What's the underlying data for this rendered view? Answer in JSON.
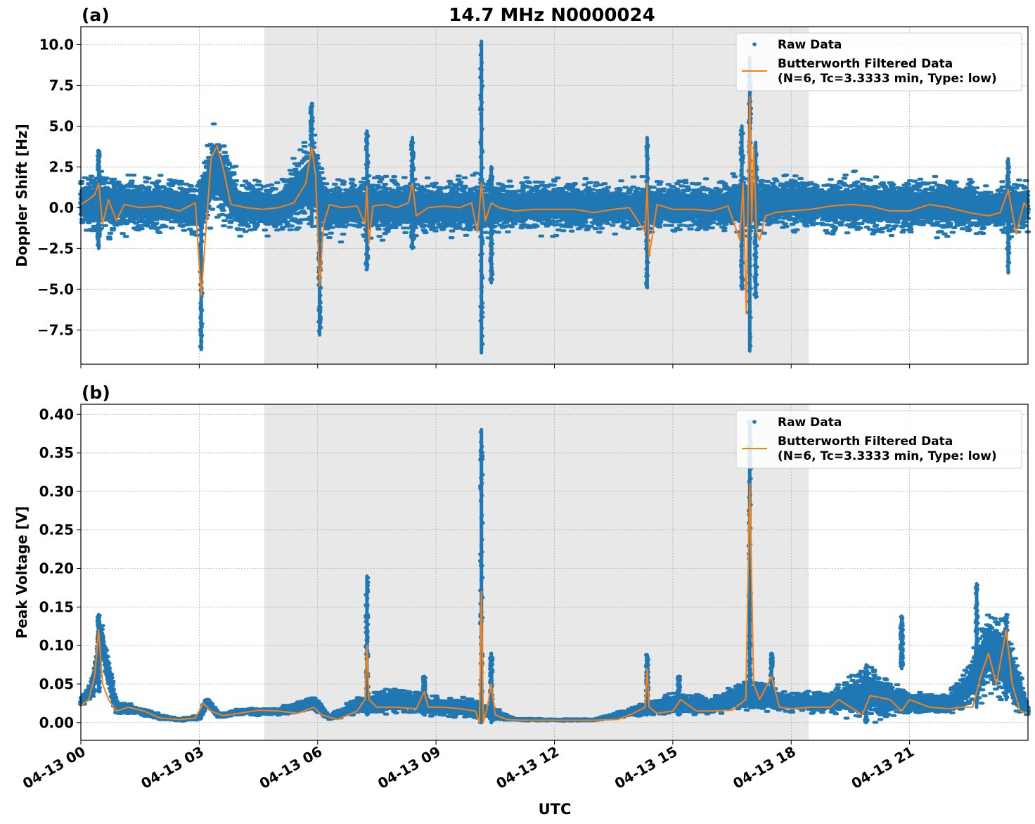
{
  "figure": {
    "title": "14.7 MHz N0000024",
    "xlabel": "UTC"
  },
  "colors": {
    "raw": "#1f77b4",
    "filtered": "#ff7f0e",
    "shade": "#e8e8e8",
    "grid": "#b0b0b0"
  },
  "chart_data": [
    {
      "type": "scatter",
      "panel_label": "(a)",
      "title": "14.7 MHz N0000024",
      "xlabel": "",
      "ylabel": "Doppler Shift [Hz]",
      "xlim": [
        0,
        24
      ],
      "ylim": [
        -9.6,
        11.1
      ],
      "x_unit": "hours UTC on 04-13",
      "yticks": [
        -7.5,
        -5.0,
        -2.5,
        0.0,
        2.5,
        5.0,
        7.5,
        10.0
      ],
      "ytick_labels": [
        "−7.5",
        "−5.0",
        "−2.5",
        "0.0",
        "2.5",
        "5.0",
        "7.5",
        "10.0"
      ],
      "shaded_interval": [
        4.65,
        18.45
      ],
      "grid": true,
      "legend_position": "top-right",
      "legend": [
        "Raw Data",
        "Butterworth Filtered Data",
        "(N=6, Tc=3.3333 min, Type: low)"
      ],
      "series": [
        {
          "name": "Raw Data",
          "kind": "scatter",
          "envelope": {
            "x": [
              0,
              0.5,
              1.0,
              2.0,
              3.0,
              3.4,
              4.0,
              5.0,
              5.9,
              6.2,
              7.0,
              8.0,
              9.0,
              10.0,
              11.0,
              12.0,
              13.0,
              14.0,
              15.0,
              16.0,
              16.8,
              17.3,
              18.0,
              19.0,
              20.0,
              21.0,
              22.0,
              23.0,
              24.0
            ],
            "upper": [
              2.0,
              2.5,
              2.2,
              2.0,
              1.8,
              5.5,
              2.0,
              1.8,
              5.0,
              2.0,
              2.1,
              2.0,
              2.0,
              2.0,
              1.8,
              1.8,
              1.8,
              1.7,
              1.8,
              1.7,
              2.2,
              2.0,
              2.2,
              2.1,
              2.3,
              2.0,
              2.0,
              1.5,
              2.0
            ],
            "lower": [
              -1.5,
              -2.0,
              -1.7,
              -1.6,
              -2.0,
              -0.8,
              -1.8,
              -1.8,
              -1.5,
              -2.0,
              -2.0,
              -1.9,
              -1.9,
              -2.0,
              -1.6,
              -1.6,
              -1.6,
              -1.7,
              -1.6,
              -1.6,
              -2.0,
              -1.5,
              -1.5,
              -1.7,
              -1.9,
              -1.8,
              -1.7,
              -1.6,
              -1.8
            ]
          },
          "spikes": [
            {
              "x": 0.45,
              "min": -2.5,
              "max": 3.5
            },
            {
              "x": 3.05,
              "min": -8.7,
              "max": 1.0
            },
            {
              "x": 5.85,
              "min": -1.0,
              "max": 6.4
            },
            {
              "x": 6.05,
              "min": -7.8,
              "max": 1.0
            },
            {
              "x": 7.25,
              "min": -3.8,
              "max": 4.7
            },
            {
              "x": 8.4,
              "min": -2.5,
              "max": 4.3
            },
            {
              "x": 10.15,
              "min": -8.9,
              "max": 10.2
            },
            {
              "x": 10.4,
              "min": -4.6,
              "max": 2.5
            },
            {
              "x": 14.35,
              "min": -4.9,
              "max": 4.3
            },
            {
              "x": 16.75,
              "min": -5.0,
              "max": 5.0
            },
            {
              "x": 16.95,
              "min": -8.8,
              "max": 9.2
            },
            {
              "x": 17.1,
              "min": -5.5,
              "max": 4.0
            },
            {
              "x": 23.5,
              "min": -4.0,
              "max": 3.0
            }
          ]
        },
        {
          "name": "Butterworth Filtered Data",
          "kind": "line",
          "x": [
            0.0,
            0.2,
            0.35,
            0.45,
            0.55,
            0.7,
            0.9,
            1.1,
            1.5,
            2.0,
            2.5,
            2.9,
            3.05,
            3.15,
            3.3,
            3.45,
            3.6,
            3.8,
            4.2,
            4.6,
            5.0,
            5.4,
            5.7,
            5.85,
            5.95,
            6.05,
            6.15,
            6.3,
            6.6,
            7.0,
            7.2,
            7.25,
            7.3,
            7.4,
            7.7,
            8.0,
            8.3,
            8.4,
            8.5,
            8.8,
            9.2,
            9.6,
            9.9,
            10.05,
            10.15,
            10.25,
            10.4,
            10.6,
            11.0,
            11.5,
            12.0,
            12.5,
            13.0,
            13.5,
            13.9,
            14.3,
            14.35,
            14.4,
            14.6,
            15.0,
            15.5,
            16.0,
            16.4,
            16.7,
            16.78,
            16.86,
            16.95,
            17.0,
            17.05,
            17.12,
            17.2,
            17.35,
            17.6,
            18.0,
            18.5,
            19.0,
            19.5,
            20.0,
            20.5,
            21.0,
            21.5,
            22.0,
            22.5,
            23.0,
            23.3,
            23.5,
            23.7,
            23.9,
            24.0
          ],
          "y": [
            0.2,
            0.5,
            0.8,
            1.5,
            -1.0,
            0.5,
            -0.8,
            0.2,
            0.0,
            0.1,
            -0.2,
            0.3,
            -5.4,
            -2.0,
            3.0,
            3.8,
            2.5,
            0.2,
            0.0,
            -0.1,
            0.0,
            0.3,
            1.5,
            3.7,
            2.0,
            -4.8,
            -1.0,
            0.2,
            0.0,
            0.1,
            -1.0,
            1.3,
            -2.2,
            0.1,
            0.2,
            0.0,
            0.3,
            1.5,
            -0.5,
            0.0,
            0.1,
            0.0,
            0.3,
            -1.5,
            1.5,
            -0.8,
            0.3,
            0.0,
            -0.2,
            -0.1,
            -0.1,
            -0.1,
            -0.3,
            -0.1,
            0.0,
            -1.5,
            1.5,
            -3.0,
            0.2,
            -0.1,
            -0.1,
            -0.2,
            0.1,
            -2.0,
            1.5,
            -6.5,
            6.8,
            -1.0,
            3.8,
            -1.5,
            -2.0,
            -0.5,
            -0.3,
            -0.2,
            -0.1,
            0.1,
            0.2,
            0.1,
            -0.2,
            -0.2,
            0.2,
            0.0,
            -0.3,
            -0.5,
            -0.3,
            1.1,
            -1.6,
            0.3,
            0.0
          ]
        }
      ]
    },
    {
      "type": "scatter",
      "panel_label": "(b)",
      "title": "",
      "xlabel": "UTC",
      "ylabel": "Peak Voltage [V]",
      "xlim": [
        0,
        24
      ],
      "ylim": [
        -0.023,
        0.413
      ],
      "x_unit": "hours UTC on 04-13",
      "xticks": [
        0,
        3,
        6,
        9,
        12,
        15,
        18,
        21
      ],
      "xtick_labels": [
        "04-13 00",
        "04-13 03",
        "04-13 06",
        "04-13 09",
        "04-13 12",
        "04-13 15",
        "04-13 18",
        "04-13 21"
      ],
      "yticks": [
        0.0,
        0.05,
        0.1,
        0.15,
        0.2,
        0.25,
        0.3,
        0.35,
        0.4
      ],
      "ytick_labels": [
        "0.00",
        "0.05",
        "0.10",
        "0.15",
        "0.20",
        "0.25",
        "0.30",
        "0.35",
        "0.40"
      ],
      "shaded_interval": [
        4.65,
        18.45
      ],
      "grid": true,
      "legend_position": "top-right",
      "legend": [
        "Raw Data",
        "Butterworth Filtered Data",
        "(N=6, Tc=3.3333 min, Type: low)"
      ],
      "series": [
        {
          "name": "Raw Data",
          "kind": "scatter",
          "envelope": {
            "x": [
              0,
              0.3,
              0.5,
              0.9,
              1.5,
              2.0,
              2.5,
              3.0,
              3.2,
              3.5,
              4.0,
              5.0,
              5.9,
              6.3,
              7.0,
              8.0,
              9.0,
              10.0,
              10.5,
              11.0,
              12.0,
              13.0,
              14.0,
              15.0,
              16.0,
              16.9,
              17.5,
              18.0,
              19.0,
              20.0,
              21.0,
              22.0,
              22.5,
              23.0,
              23.5,
              24.0
            ],
            "upper": [
              0.03,
              0.06,
              0.14,
              0.03,
              0.02,
              0.012,
              0.006,
              0.01,
              0.035,
              0.012,
              0.018,
              0.02,
              0.035,
              0.01,
              0.035,
              0.05,
              0.035,
              0.03,
              0.02,
              0.006,
              0.005,
              0.005,
              0.02,
              0.04,
              0.035,
              0.06,
              0.05,
              0.04,
              0.045,
              0.075,
              0.04,
              0.04,
              0.08,
              0.16,
              0.13,
              0.02
            ],
            "lower": [
              0.02,
              0.03,
              0.08,
              0.01,
              0.01,
              0.003,
              0.002,
              0.003,
              0.02,
              0.005,
              0.01,
              0.008,
              0.015,
              0.003,
              0.01,
              0.012,
              0.008,
              0.004,
              0.003,
              0.002,
              0.002,
              0.002,
              0.008,
              0.01,
              0.01,
              0.015,
              0.015,
              0.012,
              0.012,
              0.0,
              0.01,
              0.01,
              0.015,
              0.03,
              0.02,
              0.008
            ]
          },
          "spikes": [
            {
              "x": 0.45,
              "min": 0.04,
              "max": 0.14
            },
            {
              "x": 7.25,
              "min": 0.01,
              "max": 0.19
            },
            {
              "x": 8.7,
              "min": 0.01,
              "max": 0.06
            },
            {
              "x": 10.15,
              "min": 0.0,
              "max": 0.38
            },
            {
              "x": 10.4,
              "min": 0.0,
              "max": 0.09
            },
            {
              "x": 14.35,
              "min": 0.01,
              "max": 0.088
            },
            {
              "x": 15.15,
              "min": 0.01,
              "max": 0.06
            },
            {
              "x": 16.95,
              "min": 0.02,
              "max": 0.39
            },
            {
              "x": 17.5,
              "min": 0.02,
              "max": 0.09
            },
            {
              "x": 19.9,
              "min": 0.0,
              "max": 0.075
            },
            {
              "x": 20.8,
              "min": 0.07,
              "max": 0.138
            },
            {
              "x": 22.7,
              "min": 0.02,
              "max": 0.18
            },
            {
              "x": 23.45,
              "min": 0.03,
              "max": 0.14
            }
          ]
        },
        {
          "name": "Butterworth Filtered Data",
          "kind": "line",
          "x": [
            0.0,
            0.2,
            0.35,
            0.45,
            0.55,
            0.7,
            0.9,
            1.2,
            1.6,
            2.0,
            2.5,
            2.9,
            3.1,
            3.3,
            3.6,
            4.0,
            4.5,
            5.0,
            5.5,
            5.9,
            6.1,
            6.5,
            7.0,
            7.2,
            7.25,
            7.3,
            7.5,
            8.0,
            8.5,
            8.7,
            8.8,
            9.2,
            9.6,
            10.0,
            10.1,
            10.15,
            10.2,
            10.3,
            10.4,
            10.5,
            10.8,
            11.2,
            12.0,
            13.0,
            13.6,
            14.0,
            14.3,
            14.35,
            14.4,
            14.6,
            15.0,
            15.2,
            15.6,
            16.0,
            16.5,
            16.85,
            16.95,
            17.05,
            17.2,
            17.5,
            17.7,
            18.0,
            18.5,
            19.0,
            19.2,
            19.5,
            19.8,
            20.0,
            20.5,
            20.8,
            21.0,
            21.5,
            22.0,
            22.3,
            22.6,
            22.8,
            23.0,
            23.2,
            23.45,
            23.6,
            23.8,
            24.0
          ],
          "y": [
            0.022,
            0.03,
            0.06,
            0.12,
            0.05,
            0.03,
            0.015,
            0.02,
            0.015,
            0.006,
            0.004,
            0.006,
            0.025,
            0.015,
            0.009,
            0.012,
            0.016,
            0.015,
            0.012,
            0.02,
            0.01,
            0.004,
            0.015,
            0.03,
            0.1,
            0.03,
            0.02,
            0.02,
            0.018,
            0.04,
            0.02,
            0.02,
            0.018,
            0.015,
            0.0,
            0.17,
            0.0,
            0.02,
            0.05,
            0.01,
            0.004,
            0.003,
            0.003,
            0.003,
            0.004,
            0.012,
            0.02,
            0.07,
            0.02,
            0.012,
            0.015,
            0.03,
            0.015,
            0.015,
            0.016,
            0.03,
            0.31,
            0.05,
            0.03,
            0.06,
            0.02,
            0.018,
            0.02,
            0.02,
            0.03,
            0.02,
            0.01,
            0.035,
            0.03,
            0.015,
            0.03,
            0.02,
            0.018,
            0.02,
            0.02,
            0.06,
            0.09,
            0.05,
            0.12,
            0.05,
            0.015,
            0.012
          ]
        }
      ]
    }
  ]
}
